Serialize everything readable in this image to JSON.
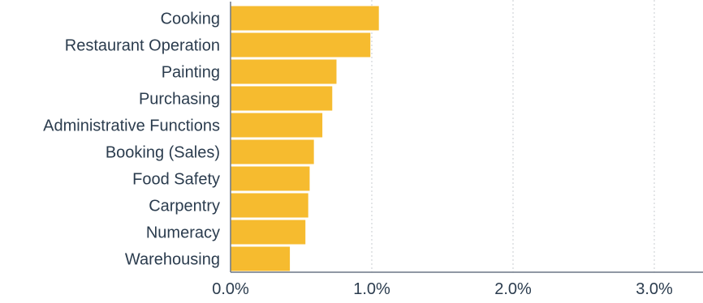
{
  "chart_data": {
    "type": "bar",
    "orientation": "horizontal",
    "categories": [
      "Cooking",
      "Restaurant Operation",
      "Painting",
      "Purchasing",
      "Administrative Functions",
      "Booking (Sales)",
      "Food Safety",
      "Carpentry",
      "Numeracy",
      "Warehousing"
    ],
    "values": [
      1.05,
      0.99,
      0.75,
      0.72,
      0.65,
      0.59,
      0.56,
      0.55,
      0.53,
      0.42
    ],
    "xlim": [
      0,
      3.3
    ],
    "xticks": [
      0,
      1,
      2,
      3
    ],
    "xtick_labels": [
      "0.0%",
      "1.0%",
      "2.0%",
      "3.0%"
    ],
    "grid": "vertical dotted",
    "bar_color": "#f6bb2f",
    "text_color": "#2b3c4e"
  }
}
